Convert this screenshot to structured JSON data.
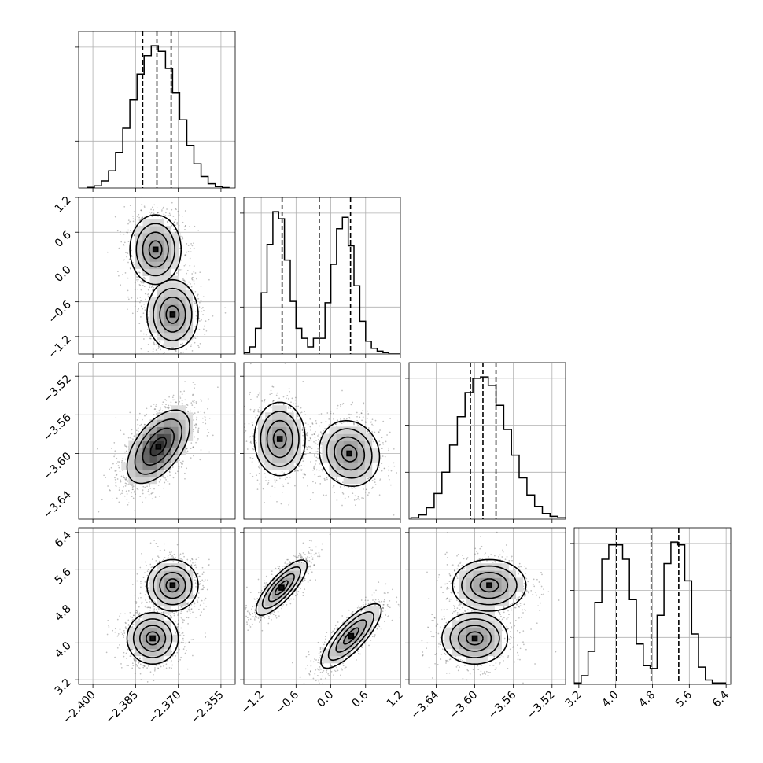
{
  "chart_data": {
    "type": "corner",
    "dimensions": [
      {
        "range": [
          -2.405,
          -2.35
        ],
        "ticks": [
          -2.4,
          -2.385,
          -2.37,
          -2.355
        ],
        "tick_labels": [
          "−2.400",
          "−2.385",
          "−2.370",
          "−2.355"
        ]
      },
      {
        "range": [
          -1.5,
          1.2
        ],
        "ticks": [
          -1.2,
          -0.6,
          0.0,
          0.6,
          1.2
        ],
        "tick_labels": [
          "−1.2",
          "−0.6",
          "0.0",
          "0.6",
          "1.2"
        ]
      },
      {
        "range": [
          -3.668,
          -3.506
        ],
        "ticks": [
          -3.64,
          -3.6,
          -3.56,
          -3.52
        ],
        "tick_labels": [
          "−3.64",
          "−3.60",
          "−3.56",
          "−3.52"
        ]
      },
      {
        "range": [
          3.1,
          6.5
        ],
        "ticks": [
          3.2,
          4.0,
          4.8,
          5.6,
          6.4
        ],
        "tick_labels": [
          "3.2",
          "4.0",
          "4.8",
          "5.6",
          "6.4"
        ]
      }
    ],
    "histograms": [
      {
        "dim": 0,
        "edges": [
          -2.402,
          -2.3995,
          -2.397,
          -2.3945,
          -2.392,
          -2.3895,
          -2.387,
          -2.3845,
          -2.382,
          -2.3795,
          -2.377,
          -2.3745,
          -2.372,
          -2.3695,
          -2.367,
          -2.3645,
          -2.362,
          -2.3595,
          -2.357,
          -2.3545,
          -2.352
        ],
        "counts": [
          0.004,
          0.015,
          0.05,
          0.12,
          0.25,
          0.42,
          0.62,
          0.8,
          0.93,
          1.0,
          0.96,
          0.84,
          0.67,
          0.48,
          0.3,
          0.17,
          0.08,
          0.03,
          0.01,
          0.003
        ],
        "quantiles": [
          -2.3825,
          -2.3775,
          -2.3725
        ]
      },
      {
        "dim": 1,
        "edges": [
          -1.5,
          -1.4,
          -1.3,
          -1.2,
          -1.1,
          -1.0,
          -0.9,
          -0.8,
          -0.7,
          -0.6,
          -0.5,
          -0.4,
          -0.3,
          -0.2,
          -0.1,
          0.0,
          0.1,
          0.2,
          0.3,
          0.4,
          0.5,
          0.6,
          0.7,
          0.8,
          0.9,
          1.0,
          1.1,
          1.2
        ],
        "counts": [
          0.01,
          0.05,
          0.18,
          0.43,
          0.77,
          1.0,
          0.95,
          0.66,
          0.37,
          0.18,
          0.11,
          0.05,
          0.11,
          0.11,
          0.36,
          0.63,
          0.88,
          0.96,
          0.76,
          0.48,
          0.23,
          0.09,
          0.04,
          0.02,
          0.01,
          0.0,
          0.0
        ],
        "quantiles": [
          -0.84,
          -0.2,
          0.34
        ]
      },
      {
        "dim": 2,
        "edges": [
          -3.666,
          -3.658,
          -3.65,
          -3.642,
          -3.634,
          -3.626,
          -3.618,
          -3.61,
          -3.602,
          -3.594,
          -3.586,
          -3.578,
          -3.57,
          -3.562,
          -3.554,
          -3.546,
          -3.538,
          -3.53,
          -3.522,
          -3.514,
          -3.506
        ],
        "counts": [
          0.01,
          0.03,
          0.08,
          0.18,
          0.33,
          0.52,
          0.72,
          0.89,
          0.99,
          1.0,
          0.94,
          0.8,
          0.63,
          0.45,
          0.29,
          0.17,
          0.09,
          0.04,
          0.02,
          0.01
        ],
        "quantiles": [
          -3.6045,
          -3.5915,
          -3.578
        ]
      },
      {
        "dim": 3,
        "edges": [
          3.1,
          3.25,
          3.4,
          3.55,
          3.7,
          3.85,
          4.0,
          4.15,
          4.3,
          4.45,
          4.6,
          4.75,
          4.9,
          5.05,
          5.2,
          5.35,
          5.5,
          5.65,
          5.8,
          5.95,
          6.1,
          6.25,
          6.4
        ],
        "counts": [
          0.01,
          0.06,
          0.23,
          0.57,
          0.87,
          0.97,
          0.97,
          0.87,
          0.59,
          0.28,
          0.13,
          0.11,
          0.48,
          0.84,
          0.99,
          0.97,
          0.72,
          0.35,
          0.12,
          0.03,
          0.01,
          0.01
        ],
        "quantiles": [
          4.02,
          4.77,
          5.37
        ]
      }
    ],
    "pairs": [
      {
        "row": 1,
        "col": 0,
        "modes": [
          {
            "mx": -2.378,
            "my": 0.3,
            "sx": 0.0045,
            "sy": 0.3,
            "rho": 0.0,
            "w": 0.5
          },
          {
            "mx": -2.372,
            "my": -0.82,
            "sx": 0.0045,
            "sy": 0.3,
            "rho": 0.0,
            "w": 0.5
          }
        ]
      },
      {
        "row": 2,
        "col": 0,
        "modes": [
          {
            "mx": -2.377,
            "my": -3.593,
            "sx": 0.0055,
            "sy": 0.019,
            "rho": 0.55,
            "w": 1.0
          }
        ]
      },
      {
        "row": 2,
        "col": 1,
        "modes": [
          {
            "mx": -0.88,
            "my": -3.585,
            "sx": 0.22,
            "sy": 0.019,
            "rho": 0.0,
            "w": 0.5
          },
          {
            "mx": 0.32,
            "my": -3.6,
            "sx": 0.26,
            "sy": 0.017,
            "rho": -0.1,
            "w": 0.5
          }
        ]
      },
      {
        "row": 3,
        "col": 0,
        "modes": [
          {
            "mx": -2.372,
            "my": 5.25,
            "sx": 0.0045,
            "sy": 0.28,
            "rho": 0.0,
            "w": 0.5
          },
          {
            "mx": -2.379,
            "my": 4.1,
            "sx": 0.0045,
            "sy": 0.28,
            "rho": 0.0,
            "w": 0.5
          }
        ]
      },
      {
        "row": 3,
        "col": 1,
        "modes": [
          {
            "mx": -0.85,
            "my": 5.2,
            "sx": 0.22,
            "sy": 0.3,
            "rho": 0.8,
            "w": 0.5
          },
          {
            "mx": 0.35,
            "my": 4.15,
            "sx": 0.26,
            "sy": 0.35,
            "rho": 0.8,
            "w": 0.5
          }
        ]
      },
      {
        "row": 3,
        "col": 2,
        "modes": [
          {
            "mx": -3.585,
            "my": 5.25,
            "sx": 0.019,
            "sy": 0.28,
            "rho": 0.0,
            "w": 0.5
          },
          {
            "mx": -3.6,
            "my": 4.1,
            "sx": 0.017,
            "sy": 0.28,
            "rho": 0.0,
            "w": 0.5
          }
        ]
      }
    ],
    "contour_levels": [
      0.118,
      0.393,
      0.675,
      0.865
    ],
    "grid": true,
    "xlabel": "",
    "ylabel": "",
    "title": ""
  }
}
